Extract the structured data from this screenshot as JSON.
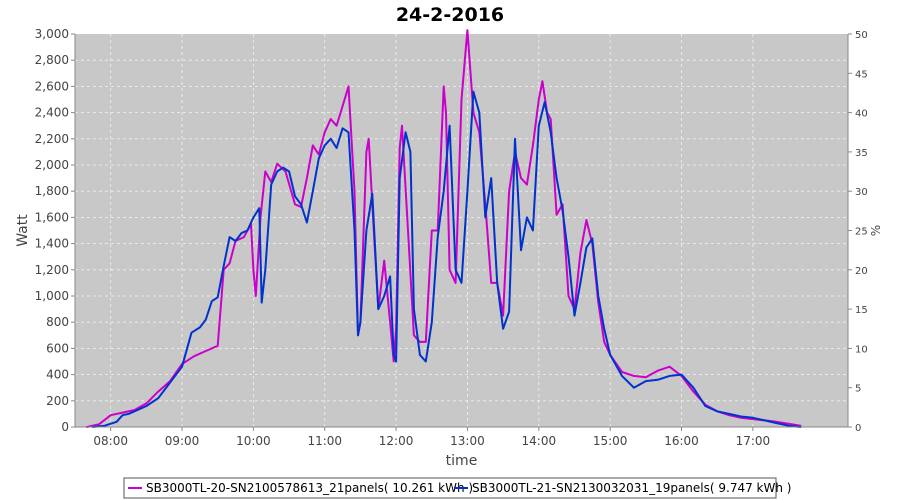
{
  "chart_data": {
    "type": "line",
    "title": "24-2-2016",
    "xlabel": "time",
    "ylabel": "Watt",
    "y2label": "%",
    "xlim": [
      "07:30",
      "18:20"
    ],
    "ylim": [
      0,
      3000
    ],
    "y2lim": [
      0,
      50
    ],
    "x_ticks": [
      "08:00",
      "09:00",
      "10:00",
      "11:00",
      "12:00",
      "13:00",
      "14:00",
      "15:00",
      "16:00",
      "17:00"
    ],
    "y_ticks": [
      "0",
      "200",
      "400",
      "600",
      "800",
      "1,000",
      "1,200",
      "1,400",
      "1,600",
      "1,800",
      "2,000",
      "2,200",
      "2,400",
      "2,600",
      "2,800",
      "3,000"
    ],
    "y2_ticks": [
      "0",
      "5",
      "10",
      "15",
      "20",
      "25",
      "30",
      "35",
      "40",
      "45",
      "50"
    ],
    "grid": true,
    "legend_position": "bottom",
    "series": [
      {
        "name": "SB3000TL-20-SN2100578613_21panels( 10.261 kWh )",
        "color": "#cc00cc",
        "points": [
          [
            "07:40",
            0
          ],
          [
            "07:50",
            20
          ],
          [
            "08:00",
            90
          ],
          [
            "08:10",
            110
          ],
          [
            "08:20",
            130
          ],
          [
            "08:30",
            180
          ],
          [
            "08:40",
            270
          ],
          [
            "08:50",
            350
          ],
          [
            "09:00",
            480
          ],
          [
            "09:10",
            540
          ],
          [
            "09:20",
            580
          ],
          [
            "09:30",
            620
          ],
          [
            "09:35",
            1200
          ],
          [
            "09:40",
            1250
          ],
          [
            "09:45",
            1420
          ],
          [
            "09:52",
            1450
          ],
          [
            "09:58",
            1550
          ],
          [
            "10:00",
            1200
          ],
          [
            "10:02",
            1000
          ],
          [
            "10:06",
            1600
          ],
          [
            "10:10",
            1950
          ],
          [
            "10:15",
            1870
          ],
          [
            "10:20",
            2010
          ],
          [
            "10:27",
            1950
          ],
          [
            "10:35",
            1700
          ],
          [
            "10:40",
            1680
          ],
          [
            "10:45",
            1900
          ],
          [
            "10:50",
            2150
          ],
          [
            "10:55",
            2080
          ],
          [
            "11:00",
            2250
          ],
          [
            "11:05",
            2350
          ],
          [
            "11:10",
            2300
          ],
          [
            "11:15",
            2450
          ],
          [
            "11:20",
            2600
          ],
          [
            "11:25",
            1800
          ],
          [
            "11:28",
            700
          ],
          [
            "11:30",
            800
          ],
          [
            "11:35",
            2100
          ],
          [
            "11:37",
            2200
          ],
          [
            "11:40",
            1700
          ],
          [
            "11:45",
            900
          ],
          [
            "11:50",
            1270
          ],
          [
            "11:55",
            800
          ],
          [
            "11:58",
            500
          ],
          [
            "12:00",
            750
          ],
          [
            "12:03",
            2130
          ],
          [
            "12:05",
            2300
          ],
          [
            "12:10",
            1500
          ],
          [
            "12:15",
            700
          ],
          [
            "12:20",
            650
          ],
          [
            "12:25",
            650
          ],
          [
            "12:30",
            1500
          ],
          [
            "12:35",
            1500
          ],
          [
            "12:40",
            2600
          ],
          [
            "12:42",
            2400
          ],
          [
            "12:45",
            1200
          ],
          [
            "12:50",
            1100
          ],
          [
            "12:55",
            2500
          ],
          [
            "13:00",
            3030
          ],
          [
            "13:05",
            2400
          ],
          [
            "13:10",
            2250
          ],
          [
            "13:15",
            1700
          ],
          [
            "13:20",
            1100
          ],
          [
            "13:25",
            1100
          ],
          [
            "13:30",
            850
          ],
          [
            "13:35",
            1800
          ],
          [
            "13:40",
            2100
          ],
          [
            "13:45",
            1900
          ],
          [
            "13:50",
            1850
          ],
          [
            "13:55",
            2150
          ],
          [
            "14:00",
            2500
          ],
          [
            "14:03",
            2640
          ],
          [
            "14:07",
            2400
          ],
          [
            "14:10",
            2350
          ],
          [
            "14:15",
            1620
          ],
          [
            "14:20",
            1700
          ],
          [
            "14:25",
            1000
          ],
          [
            "14:30",
            900
          ],
          [
            "14:35",
            1330
          ],
          [
            "14:40",
            1580
          ],
          [
            "14:45",
            1400
          ],
          [
            "14:50",
            950
          ],
          [
            "14:55",
            650
          ],
          [
            "15:00",
            550
          ],
          [
            "15:10",
            420
          ],
          [
            "15:20",
            390
          ],
          [
            "15:30",
            380
          ],
          [
            "15:40",
            430
          ],
          [
            "15:50",
            460
          ],
          [
            "16:00",
            390
          ],
          [
            "16:10",
            270
          ],
          [
            "16:20",
            170
          ],
          [
            "16:30",
            120
          ],
          [
            "16:40",
            90
          ],
          [
            "16:50",
            70
          ],
          [
            "17:00",
            60
          ],
          [
            "17:10",
            50
          ],
          [
            "17:20",
            40
          ],
          [
            "17:30",
            25
          ],
          [
            "17:40",
            10
          ]
        ]
      },
      {
        "name": "SB3000TL-21-SN2130032031_19panels( 9.747 kWh )",
        "color": "#0033cc",
        "points": [
          [
            "07:45",
            0
          ],
          [
            "07:55",
            10
          ],
          [
            "08:05",
            40
          ],
          [
            "08:10",
            90
          ],
          [
            "08:15",
            100
          ],
          [
            "08:20",
            120
          ],
          [
            "08:30",
            160
          ],
          [
            "08:40",
            220
          ],
          [
            "08:50",
            340
          ],
          [
            "09:00",
            460
          ],
          [
            "09:08",
            720
          ],
          [
            "09:15",
            760
          ],
          [
            "09:20",
            820
          ],
          [
            "09:25",
            960
          ],
          [
            "09:30",
            990
          ],
          [
            "09:35",
            1230
          ],
          [
            "09:40",
            1450
          ],
          [
            "09:45",
            1420
          ],
          [
            "09:50",
            1480
          ],
          [
            "09:55",
            1500
          ],
          [
            "10:00",
            1600
          ],
          [
            "10:05",
            1670
          ],
          [
            "10:07",
            950
          ],
          [
            "10:10",
            1200
          ],
          [
            "10:15",
            1850
          ],
          [
            "10:20",
            1950
          ],
          [
            "10:25",
            1980
          ],
          [
            "10:30",
            1950
          ],
          [
            "10:35",
            1760
          ],
          [
            "10:40",
            1700
          ],
          [
            "10:45",
            1560
          ],
          [
            "10:50",
            1800
          ],
          [
            "10:55",
            2050
          ],
          [
            "11:00",
            2150
          ],
          [
            "11:05",
            2200
          ],
          [
            "11:10",
            2130
          ],
          [
            "11:15",
            2280
          ],
          [
            "11:20",
            2250
          ],
          [
            "11:25",
            1500
          ],
          [
            "11:28",
            700
          ],
          [
            "11:30",
            800
          ],
          [
            "11:35",
            1500
          ],
          [
            "11:40",
            1780
          ],
          [
            "11:45",
            900
          ],
          [
            "11:50",
            1000
          ],
          [
            "11:55",
            1150
          ],
          [
            "11:58",
            550
          ],
          [
            "12:00",
            500
          ],
          [
            "12:03",
            1900
          ],
          [
            "12:08",
            2250
          ],
          [
            "12:12",
            2100
          ],
          [
            "12:15",
            900
          ],
          [
            "12:20",
            550
          ],
          [
            "12:25",
            500
          ],
          [
            "12:30",
            800
          ],
          [
            "12:35",
            1450
          ],
          [
            "12:40",
            1800
          ],
          [
            "12:45",
            2300
          ],
          [
            "12:50",
            1200
          ],
          [
            "12:55",
            1100
          ],
          [
            "13:00",
            1800
          ],
          [
            "13:05",
            2560
          ],
          [
            "13:10",
            2400
          ],
          [
            "13:15",
            1600
          ],
          [
            "13:20",
            1900
          ],
          [
            "13:25",
            1100
          ],
          [
            "13:30",
            750
          ],
          [
            "13:35",
            880
          ],
          [
            "13:40",
            2200
          ],
          [
            "13:45",
            1350
          ],
          [
            "13:50",
            1600
          ],
          [
            "13:55",
            1500
          ],
          [
            "14:00",
            2300
          ],
          [
            "14:05",
            2480
          ],
          [
            "14:10",
            2250
          ],
          [
            "14:15",
            1900
          ],
          [
            "14:20",
            1650
          ],
          [
            "14:25",
            1300
          ],
          [
            "14:30",
            850
          ],
          [
            "14:35",
            1100
          ],
          [
            "14:40",
            1370
          ],
          [
            "14:45",
            1440
          ],
          [
            "14:50",
            1000
          ],
          [
            "14:55",
            750
          ],
          [
            "15:00",
            550
          ],
          [
            "15:10",
            390
          ],
          [
            "15:20",
            300
          ],
          [
            "15:30",
            350
          ],
          [
            "15:40",
            360
          ],
          [
            "15:50",
            390
          ],
          [
            "16:00",
            400
          ],
          [
            "16:10",
            300
          ],
          [
            "16:20",
            160
          ],
          [
            "16:30",
            120
          ],
          [
            "16:40",
            100
          ],
          [
            "16:50",
            80
          ],
          [
            "17:00",
            70
          ],
          [
            "17:10",
            50
          ],
          [
            "17:20",
            30
          ],
          [
            "17:30",
            10
          ],
          [
            "17:40",
            0
          ]
        ]
      }
    ]
  }
}
